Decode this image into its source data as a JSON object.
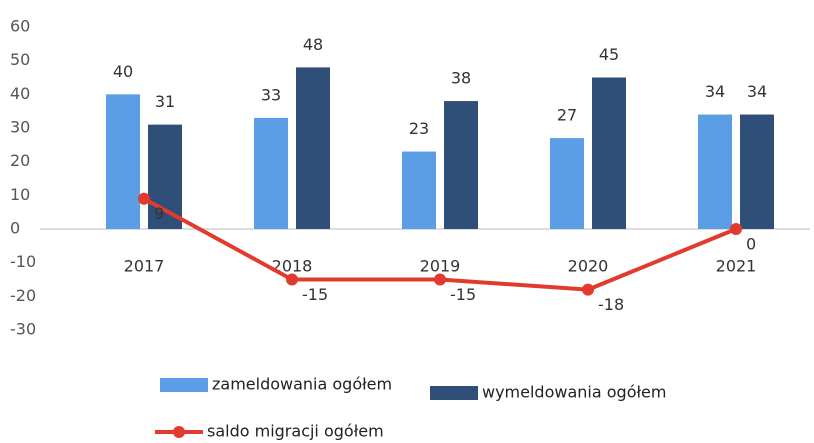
{
  "chart_data": {
    "type": "bar",
    "categories": [
      "2017",
      "2018",
      "2019",
      "2020",
      "2021"
    ],
    "series": [
      {
        "name": "zameldowania ogółem",
        "type": "bar",
        "color": "#5b9ee6",
        "values": [
          40,
          33,
          23,
          27,
          34
        ]
      },
      {
        "name": "wymeldowania ogółem",
        "type": "bar",
        "color": "#2f4f78",
        "values": [
          31,
          48,
          38,
          45,
          34
        ]
      },
      {
        "name": "saldo migracji ogółem",
        "type": "line",
        "color": "#e23a2c",
        "values": [
          9,
          -15,
          -15,
          -18,
          0
        ]
      }
    ],
    "ylim": [
      -30,
      60
    ],
    "yticks": [
      -30,
      -20,
      -10,
      0,
      10,
      20,
      30,
      40,
      50,
      60
    ],
    "legend": "bottom"
  }
}
